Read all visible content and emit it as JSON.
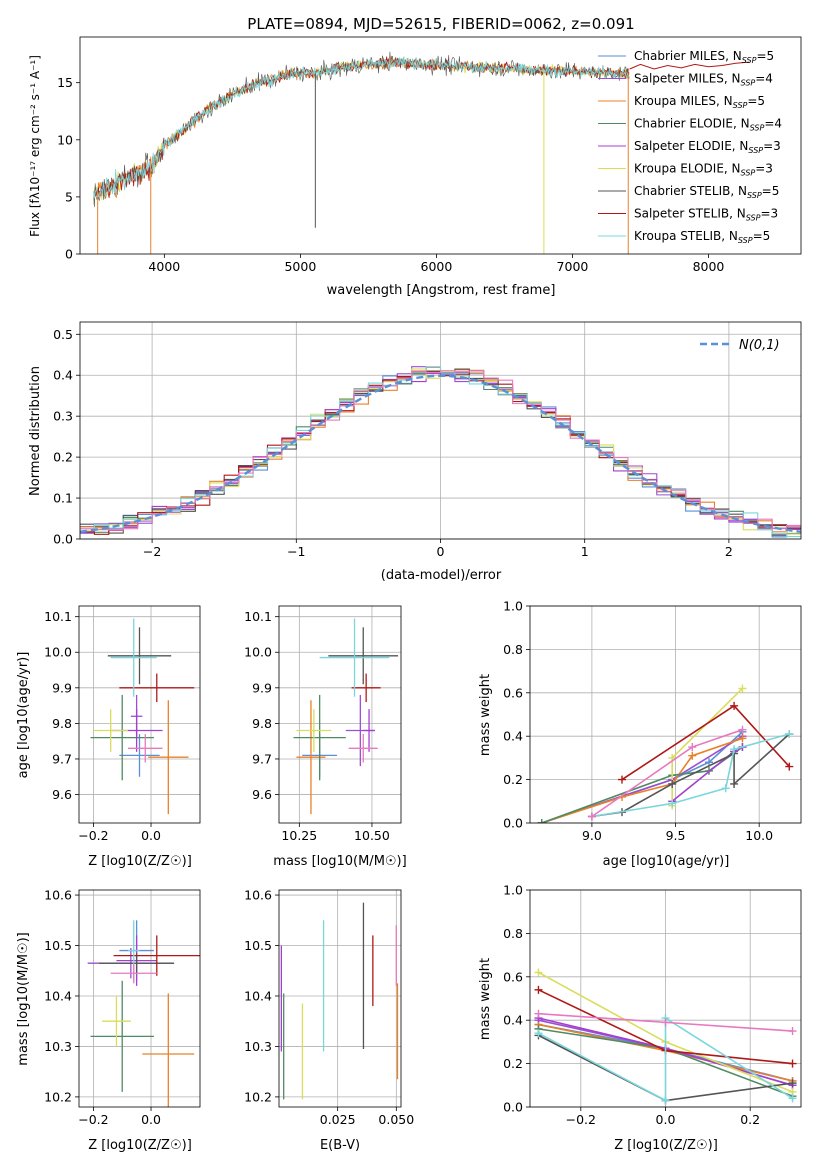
{
  "figure_title": "PLATE=0894, MJD=52615, FIBERID=0062, z=0.091",
  "colors": {
    "Chabrier MILES": "#5b8fd6",
    "Salpeter MILES": "#9c4fcf",
    "Kroupa MILES": "#e8812a",
    "Chabrier ELODIE": "#4f8a63",
    "Salpeter ELODIE": "#a43fd0",
    "Kroupa ELODIE": "#d9dd5a",
    "Chabrier STELIB": "#555555",
    "Salpeter STELIB": "#b01818",
    "Kroupa STELIB": "#79d6dd",
    "pink": "#e878c0",
    "gauss": "#5b8fd6"
  },
  "chart_data": [
    {
      "id": "spectrum",
      "type": "line",
      "title": "PLATE=0894, MJD=52615, FIBERID=0062, z=0.091",
      "xlabel": "wavelength [Angstrom, rest frame]",
      "ylabel": "Flux [fλ10⁻¹⁷ erg cm⁻² s⁻¹ A⁻¹]",
      "xlim": [
        3380,
        8680
      ],
      "ylim": [
        0,
        19
      ],
      "xticks": [
        4000,
        5000,
        6000,
        7000,
        8000
      ],
      "yticks": [
        0,
        5,
        10,
        15
      ],
      "grid": false,
      "legend_position": "top-right",
      "legend": [
        "Chabrier MILES, N_SSP=5",
        "Salpeter MILES, N_SSP=4",
        "Kroupa MILES, N_SSP=5",
        "Chabrier ELODIE, N_SSP=4",
        "Salpeter ELODIE, N_SSP=3",
        "Kroupa ELODIE, N_SSP=3",
        "Chabrier STELIB, N_SSP=5",
        "Salpeter STELIB, N_SSP=3",
        "Kroupa STELIB, N_SSP=5"
      ],
      "continuum": {
        "x": [
          3480,
          3600,
          3700,
          3800,
          3900,
          4000,
          4100,
          4200,
          4300,
          4400,
          4500,
          4600,
          4700,
          4800,
          4900,
          5000,
          5100,
          5200,
          5300,
          5400,
          5500,
          5600,
          5700,
          5800,
          5900,
          6000,
          6100,
          6200,
          6300,
          6400,
          6500,
          6600,
          6700,
          6800,
          6900,
          7000,
          7100,
          7200,
          7300,
          7400
        ],
        "y": [
          5.2,
          5.8,
          6.5,
          7.0,
          7.5,
          9.5,
          10.5,
          11.5,
          12.5,
          13.2,
          14.0,
          14.5,
          15.0,
          15.3,
          15.7,
          15.9,
          15.8,
          16.0,
          16.3,
          16.5,
          16.6,
          16.7,
          16.8,
          16.7,
          16.6,
          16.6,
          16.5,
          16.4,
          16.4,
          16.3,
          16.3,
          16.2,
          16.1,
          16.1,
          16.0,
          16.0,
          15.9,
          15.9,
          15.8,
          15.8
        ]
      },
      "red_tail": {
        "x": [
          7420,
          7500,
          7600,
          7700,
          7800,
          7900,
          8000,
          8100,
          8200,
          8300
        ],
        "y": [
          16.2,
          16.6,
          16.2,
          16.5,
          16.3,
          16.6,
          16.4,
          16.5,
          16.7,
          16.8
        ]
      },
      "dips": [
        {
          "x": 3510,
          "y": 0
        },
        {
          "x": 3900,
          "y": 0
        },
        {
          "x": 5110,
          "y": 2.3
        },
        {
          "x": 6790,
          "y": 0
        },
        {
          "x": 7410,
          "y": 0
        }
      ]
    },
    {
      "id": "residuals",
      "type": "histogram",
      "xlabel": "(data-model)/error",
      "ylabel": "Normed distribution",
      "xlim": [
        -2.5,
        2.5
      ],
      "ylim": [
        0,
        0.53
      ],
      "xticks": [
        -2,
        -1,
        0,
        1,
        2
      ],
      "yticks": [
        0.0,
        0.1,
        0.2,
        0.3,
        0.4,
        0.5
      ],
      "grid": true,
      "legend_position": "top-right",
      "legend": [
        "N(0,1)"
      ],
      "bin_width": 0.1
    },
    {
      "id": "z-age",
      "type": "errorbar",
      "xlabel": "Z [log10(Z/Z☉)]",
      "ylabel": "age [log10(age/yr)]",
      "xlim": [
        -0.25,
        0.17
      ],
      "ylim": [
        9.52,
        10.13
      ],
      "xticks": [
        -0.2,
        0.0
      ],
      "yticks": [
        9.6,
        9.7,
        9.8,
        9.9,
        10.0,
        10.1
      ],
      "grid": true,
      "points": [
        {
          "series": "Chabrier MILES",
          "x": -0.04,
          "xerr": 0.07,
          "y": 9.71,
          "yerr": 0.06
        },
        {
          "series": "Salpeter MILES",
          "x": -0.05,
          "xerr": 0.02,
          "y": 9.82,
          "yerr": 0.06
        },
        {
          "series": "Kroupa MILES",
          "x": 0.06,
          "xerr": 0.07,
          "y": 9.705,
          "yerr": 0.16
        },
        {
          "series": "Chabrier ELODIE",
          "x": -0.1,
          "xerr": 0.11,
          "y": 9.76,
          "yerr": 0.12
        },
        {
          "series": "Salpeter ELODIE",
          "x": -0.05,
          "xerr": 0.09,
          "y": 9.78,
          "yerr": 0.06
        },
        {
          "series": "Kroupa ELODIE",
          "x": -0.14,
          "xerr": 0.06,
          "y": 9.78,
          "yerr": 0.06
        },
        {
          "series": "Chabrier STELIB",
          "x": -0.04,
          "xerr": 0.11,
          "y": 9.99,
          "yerr": 0.08
        },
        {
          "series": "Salpeter STELIB",
          "x": 0.02,
          "xerr": 0.13,
          "y": 9.9,
          "yerr": 0.04
        },
        {
          "series": "Kroupa STELIB",
          "x": -0.06,
          "xerr": 0.08,
          "y": 9.985,
          "yerr": 0.11
        },
        {
          "series": "pink",
          "x": -0.02,
          "xerr": 0.06,
          "y": 9.73,
          "yerr": 0.04
        }
      ]
    },
    {
      "id": "mass-age",
      "type": "errorbar",
      "xlabel": "mass [log10(M/M☉)]",
      "ylabel": "",
      "xlim": [
        10.18,
        10.6
      ],
      "ylim": [
        9.52,
        10.13
      ],
      "xticks": [
        10.25,
        10.5
      ],
      "yticks": [
        9.6,
        9.7,
        9.8,
        9.9,
        10.0,
        10.1
      ],
      "grid": true,
      "points": [
        {
          "series": "Chabrier MILES",
          "x": 10.32,
          "xerr": 0.06,
          "y": 9.71,
          "yerr": 0.06
        },
        {
          "series": "Salpeter MILES",
          "x": 10.46,
          "xerr": 0.05,
          "y": 9.78,
          "yerr": 0.1
        },
        {
          "series": "Kroupa MILES",
          "x": 10.29,
          "xerr": 0.05,
          "y": 9.705,
          "yerr": 0.16
        },
        {
          "series": "Chabrier ELODIE",
          "x": 10.32,
          "xerr": 0.09,
          "y": 9.76,
          "yerr": 0.12
        },
        {
          "series": "Salpeter ELODIE",
          "x": 10.49,
          "xerr": 0.02,
          "y": 9.78,
          "yerr": 0.06
        },
        {
          "series": "Kroupa ELODIE",
          "x": 10.3,
          "xerr": 0.06,
          "y": 9.78,
          "yerr": 0.06
        },
        {
          "series": "Chabrier STELIB",
          "x": 10.47,
          "xerr": 0.12,
          "y": 9.99,
          "yerr": 0.08
        },
        {
          "series": "Salpeter STELIB",
          "x": 10.48,
          "xerr": 0.05,
          "y": 9.9,
          "yerr": 0.04
        },
        {
          "series": "Kroupa STELIB",
          "x": 10.44,
          "xerr": 0.12,
          "y": 9.985,
          "yerr": 0.11
        },
        {
          "series": "pink",
          "x": 10.47,
          "xerr": 0.05,
          "y": 9.73,
          "yerr": 0.04
        }
      ]
    },
    {
      "id": "age-weight",
      "type": "line",
      "xlabel": "age [log10(age/yr)]",
      "ylabel": "mass weight",
      "xlim": [
        8.63,
        10.25
      ],
      "ylim": [
        0,
        1
      ],
      "xticks": [
        9.0,
        9.5,
        10.0
      ],
      "yticks": [
        0.0,
        0.2,
        0.4,
        0.6,
        0.8,
        1.0
      ],
      "grid": true,
      "series": [
        {
          "name": "Chabrier MILES",
          "x": [
            8.7,
            9.48,
            9.7,
            9.9
          ],
          "y": [
            0.0,
            0.2,
            0.28,
            0.42
          ]
        },
        {
          "name": "Salpeter MILES",
          "x": [
            8.7,
            9.48,
            9.9
          ],
          "y": [
            0.0,
            0.2,
            0.4
          ]
        },
        {
          "name": "Kroupa MILES",
          "x": [
            8.7,
            9.18,
            9.48,
            9.6,
            9.9
          ],
          "y": [
            0.0,
            0.12,
            0.18,
            0.31,
            0.39
          ]
        },
        {
          "name": "Chabrier ELODIE",
          "x": [
            8.7,
            9.48,
            9.7,
            9.9
          ],
          "y": [
            0.0,
            0.22,
            0.24,
            0.35
          ]
        },
        {
          "name": "Salpeter ELODIE",
          "x": [
            9.48,
            9.85,
            9.9
          ],
          "y": [
            0.1,
            0.33,
            0.35
          ]
        },
        {
          "name": "Kroupa ELODIE",
          "x": [
            9.48,
            9.48,
            9.9
          ],
          "y": [
            0.08,
            0.3,
            0.62
          ]
        },
        {
          "name": "Chabrier STELIB",
          "x": [
            9.0,
            9.18,
            9.48,
            9.85,
            9.85,
            10.18
          ],
          "y": [
            0.03,
            0.05,
            0.18,
            0.32,
            0.18,
            0.41
          ]
        },
        {
          "name": "Salpeter STELIB",
          "x": [
            9.18,
            9.85,
            10.18
          ],
          "y": [
            0.2,
            0.54,
            0.26
          ]
        },
        {
          "name": "Kroupa STELIB",
          "x": [
            9.0,
            9.48,
            9.8,
            9.85,
            10.18
          ],
          "y": [
            0.03,
            0.09,
            0.16,
            0.34,
            0.41
          ]
        },
        {
          "name": "pink",
          "x": [
            9.0,
            9.6,
            9.9
          ],
          "y": [
            0.03,
            0.35,
            0.43
          ]
        }
      ]
    },
    {
      "id": "z-mass",
      "type": "errorbar",
      "xlabel": "Z [log10(Z/Z☉)]",
      "ylabel": "mass [log10(M/M☉)]",
      "xlim": [
        -0.25,
        0.17
      ],
      "ylim": [
        10.18,
        10.61
      ],
      "xticks": [
        -0.2,
        0.0
      ],
      "yticks": [
        10.2,
        10.3,
        10.4,
        10.5,
        10.6
      ],
      "grid": true,
      "points": [
        {
          "series": "Chabrier MILES",
          "x": -0.05,
          "xerr": 0.06,
          "y": 10.49,
          "yerr": 0.06
        },
        {
          "series": "Salpeter MILES",
          "x": -0.07,
          "xerr": 0.15,
          "y": 10.465,
          "yerr": 0.03
        },
        {
          "series": "Kroupa MILES",
          "x": 0.06,
          "xerr": 0.09,
          "y": 10.285,
          "yerr": 0.12
        },
        {
          "series": "Chabrier ELODIE",
          "x": -0.1,
          "xerr": 0.11,
          "y": 10.32,
          "yerr": 0.11
        },
        {
          "series": "Salpeter ELODIE",
          "x": -0.05,
          "xerr": 0.07,
          "y": 10.47,
          "yerr": 0.05
        },
        {
          "series": "Kroupa ELODIE",
          "x": -0.12,
          "xerr": 0.05,
          "y": 10.35,
          "yerr": 0.05
        },
        {
          "series": "Chabrier STELIB",
          "x": -0.05,
          "xerr": 0.13,
          "y": 10.465,
          "yerr": 0.02
        },
        {
          "series": "Salpeter STELIB",
          "x": 0.02,
          "xerr": 0.15,
          "y": 10.48,
          "yerr": 0.04
        },
        {
          "series": "Kroupa STELIB",
          "x": -0.06,
          "xerr": 0.02,
          "y": 10.49,
          "yerr": 0.06
        },
        {
          "series": "pink",
          "x": -0.06,
          "xerr": 0.08,
          "y": 10.445,
          "yerr": 0.02
        }
      ]
    },
    {
      "id": "ebv-mass",
      "type": "errorbar",
      "xlabel": "E(B-V)",
      "ylabel": "",
      "xlim": [
        0.0,
        0.052
      ],
      "ylim": [
        10.18,
        10.61
      ],
      "xticks": [
        0.025,
        0.05
      ],
      "yticks": [
        10.2,
        10.3,
        10.4,
        10.5,
        10.6
      ],
      "grid": true,
      "points": [
        {
          "series": "Salpeter ELODIE",
          "x": 0.001,
          "y": 10.395,
          "yerr": 0.105
        },
        {
          "series": "Chabrier ELODIE",
          "x": 0.002,
          "y": 10.3,
          "yerr": 0.105
        },
        {
          "series": "Kroupa ELODIE",
          "x": 0.01,
          "y": 10.29,
          "yerr": 0.095
        },
        {
          "series": "Kroupa STELIB",
          "x": 0.019,
          "y": 10.42,
          "yerr": 0.13
        },
        {
          "series": "Chabrier STELIB",
          "x": 0.036,
          "y": 10.44,
          "yerr": 0.145
        },
        {
          "series": "Salpeter STELIB",
          "x": 0.04,
          "y": 10.45,
          "yerr": 0.07
        },
        {
          "series": "pink",
          "x": 0.05,
          "y": 10.48,
          "yerr": 0.06
        },
        {
          "series": "Kroupa MILES",
          "x": 0.0505,
          "y": 10.33,
          "yerr": 0.095
        }
      ]
    },
    {
      "id": "z-weight",
      "type": "line",
      "xlabel": "Z [log10(Z/Z☉)]",
      "ylabel": "mass weight",
      "xlim": [
        -0.32,
        0.32
      ],
      "ylim": [
        0,
        1
      ],
      "xticks": [
        -0.2,
        0.0,
        0.2
      ],
      "yticks": [
        0.0,
        0.2,
        0.4,
        0.6,
        0.8,
        1.0
      ],
      "grid": true,
      "series": [
        {
          "name": "Chabrier MILES",
          "x": [
            -0.3,
            0.0,
            0.3
          ],
          "y": [
            0.38,
            0.27,
            0.12
          ]
        },
        {
          "name": "Salpeter MILES",
          "x": [
            -0.3,
            0.0,
            0.3
          ],
          "y": [
            0.4,
            0.27,
            0.1
          ]
        },
        {
          "name": "Kroupa MILES",
          "x": [
            -0.3,
            0.0,
            0.3
          ],
          "y": [
            0.38,
            0.26,
            0.12
          ]
        },
        {
          "name": "Chabrier ELODIE",
          "x": [
            -0.3,
            0.0,
            0.3
          ],
          "y": [
            0.36,
            0.27,
            0.05
          ]
        },
        {
          "name": "Salpeter ELODIE",
          "x": [
            -0.3,
            0.0,
            0.3
          ],
          "y": [
            0.41,
            0.27,
            0.1
          ]
        },
        {
          "name": "Kroupa ELODIE",
          "x": [
            -0.3,
            0.0,
            0.3
          ],
          "y": [
            0.62,
            0.3,
            0.07
          ]
        },
        {
          "name": "Chabrier STELIB",
          "x": [
            -0.3,
            0.0,
            0.3
          ],
          "y": [
            0.33,
            0.03,
            0.11
          ]
        },
        {
          "name": "Salpeter STELIB",
          "x": [
            -0.3,
            0.0,
            0.3
          ],
          "y": [
            0.54,
            0.26,
            0.2
          ]
        },
        {
          "name": "Kroupa STELIB",
          "x": [
            -0.3,
            0.0,
            0.0,
            0.3
          ],
          "y": [
            0.34,
            0.03,
            0.41,
            0.04
          ]
        },
        {
          "name": "pink",
          "x": [
            -0.3,
            0.0,
            0.3
          ],
          "y": [
            0.43,
            0.39,
            0.35
          ]
        }
      ]
    }
  ]
}
